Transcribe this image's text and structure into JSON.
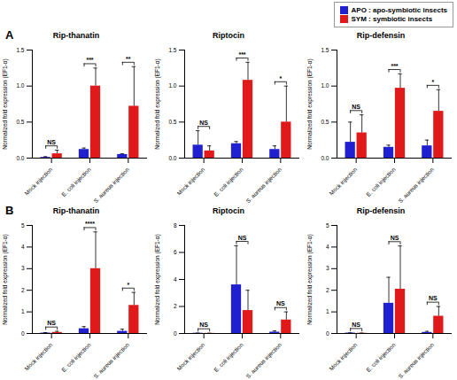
{
  "chart_data": [
    {
      "type": "bar",
      "title": "Rip-thanatin",
      "annotations": [
        "A"
      ],
      "legend": "top-right",
      "ylabel": "Normalized fold expression (EF1-α)",
      "categories": [
        "Mock injection",
        "E. coli injection",
        "S. aureus injection"
      ],
      "series": [
        {
          "name": "APO : apo-symbiotic insects",
          "color": "#2020d0",
          "values": [
            0.01,
            0.12,
            0.05
          ],
          "errors": [
            0.01,
            0.02,
            0.01
          ]
        },
        {
          "name": "SYM : symbiotic insects",
          "color": "#e01a1a",
          "values": [
            0.06,
            1.0,
            0.72
          ],
          "errors": [
            0.05,
            0.25,
            0.55
          ]
        }
      ],
      "significance": [
        "NS",
        "***",
        "**"
      ],
      "ylim": [
        0,
        1.5
      ],
      "yticks": [
        {
          "value": 0,
          "label": "0.0"
        },
        {
          "value": 0.5,
          "label": "0.5"
        },
        {
          "value": 1,
          "label": "1.0"
        },
        {
          "value": 1.5,
          "label": "1.5"
        }
      ]
    },
    {
      "type": "bar",
      "title": "Riptocin",
      "ylabel": "Normalized fold expression (EF1-α)",
      "categories": [
        "Mock injection",
        "E. coli injection",
        "S. aureus injection"
      ],
      "series": [
        {
          "name": "APO : apo-symbiotic insects",
          "color": "#2020d0",
          "values": [
            0.18,
            0.2,
            0.12
          ],
          "errors": [
            0.2,
            0.03,
            0.05
          ]
        },
        {
          "name": "SYM : symbiotic insects",
          "color": "#e01a1a",
          "values": [
            0.1,
            1.08,
            0.5
          ],
          "errors": [
            0.07,
            0.25,
            0.5
          ]
        }
      ],
      "significance": [
        "NS",
        "***",
        "*"
      ],
      "ylim": [
        0,
        1.5
      ],
      "yticks": [
        {
          "value": 0,
          "label": "0.0"
        },
        {
          "value": 0.5,
          "label": "0.5"
        },
        {
          "value": 1,
          "label": "1.0"
        },
        {
          "value": 1.5,
          "label": "1.5"
        }
      ]
    },
    {
      "type": "bar",
      "title": "Rip-defensin",
      "ylabel": "Normalized fold expression (EF1-α)",
      "categories": [
        "Mock injection",
        "E. coli injection",
        "S. aureus injection"
      ],
      "series": [
        {
          "name": "APO : apo-symbiotic insects",
          "color": "#2020d0",
          "values": [
            0.22,
            0.15,
            0.17
          ],
          "errors": [
            0.28,
            0.03,
            0.08
          ]
        },
        {
          "name": "SYM : symbiotic insects",
          "color": "#e01a1a",
          "values": [
            0.35,
            0.97,
            0.65
          ],
          "errors": [
            0.25,
            0.2,
            0.3
          ]
        }
      ],
      "significance": [
        "NS",
        "***",
        "*"
      ],
      "ylim": [
        0,
        1.5
      ],
      "yticks": [
        {
          "value": 0,
          "label": "0.0"
        },
        {
          "value": 0.5,
          "label": "0.5"
        },
        {
          "value": 1,
          "label": "1.0"
        },
        {
          "value": 1.5,
          "label": "1.5"
        }
      ]
    },
    {
      "type": "bar",
      "title": "Rip-thanatin",
      "annotations": [
        "B"
      ],
      "ylabel": "Normalized fold expression (EF1-α)",
      "categories": [
        "Mock injection",
        "E. coli injection",
        "S. aureus injection"
      ],
      "series": [
        {
          "name": "APO : apo-symbiotic insects",
          "color": "#2020d0",
          "values": [
            0.02,
            0.22,
            0.1
          ],
          "errors": [
            0.02,
            0.1,
            0.1
          ]
        },
        {
          "name": "SYM : symbiotic insects",
          "color": "#e01a1a",
          "values": [
            0.05,
            3.0,
            1.3
          ],
          "errors": [
            0.05,
            1.7,
            0.6
          ]
        }
      ],
      "significance": [
        "NS",
        "****",
        "*"
      ],
      "ylim": [
        0,
        5
      ],
      "yticks": [
        0,
        1,
        2,
        3,
        4,
        5
      ]
    },
    {
      "type": "bar",
      "title": "Riptocin",
      "ylabel": "Normalized fold expression (EF1-α)",
      "categories": [
        "Mock injection",
        "E. coli injection",
        "S. aureus injection"
      ],
      "series": [
        {
          "name": "APO : apo-symbiotic insects",
          "color": "#2020d0",
          "values": [
            0.02,
            3.6,
            0.1
          ],
          "errors": [
            0.01,
            2.9,
            0.1
          ]
        },
        {
          "name": "SYM : symbiotic insects",
          "color": "#e01a1a",
          "values": [
            0.01,
            1.7,
            1.0
          ],
          "errors": [
            0.01,
            1.5,
            0.6
          ]
        }
      ],
      "significance": [
        "NS",
        "NS",
        "NS"
      ],
      "ylim": [
        0,
        8
      ],
      "yticks": [
        0,
        2,
        4,
        6,
        8
      ]
    },
    {
      "type": "bar",
      "title": "Rip-defensin",
      "ylabel": "Normalized fold expression (EF1-α)",
      "categories": [
        "Mock injection",
        "E. coli injection",
        "S. aureus injection"
      ],
      "series": [
        {
          "name": "APO : apo-symbiotic insects",
          "color": "#2020d0",
          "values": [
            0.02,
            1.4,
            0.05
          ],
          "errors": [
            0.01,
            1.2,
            0.05
          ]
        },
        {
          "name": "SYM : symbiotic insects",
          "color": "#e01a1a",
          "values": [
            0.01,
            2.05,
            0.8
          ],
          "errors": [
            0.01,
            2.0,
            0.45
          ]
        }
      ],
      "significance": [
        "NS",
        "NS",
        "NS"
      ],
      "ylim": [
        0,
        5
      ],
      "yticks": [
        0,
        1,
        2,
        3,
        4,
        5
      ]
    }
  ]
}
